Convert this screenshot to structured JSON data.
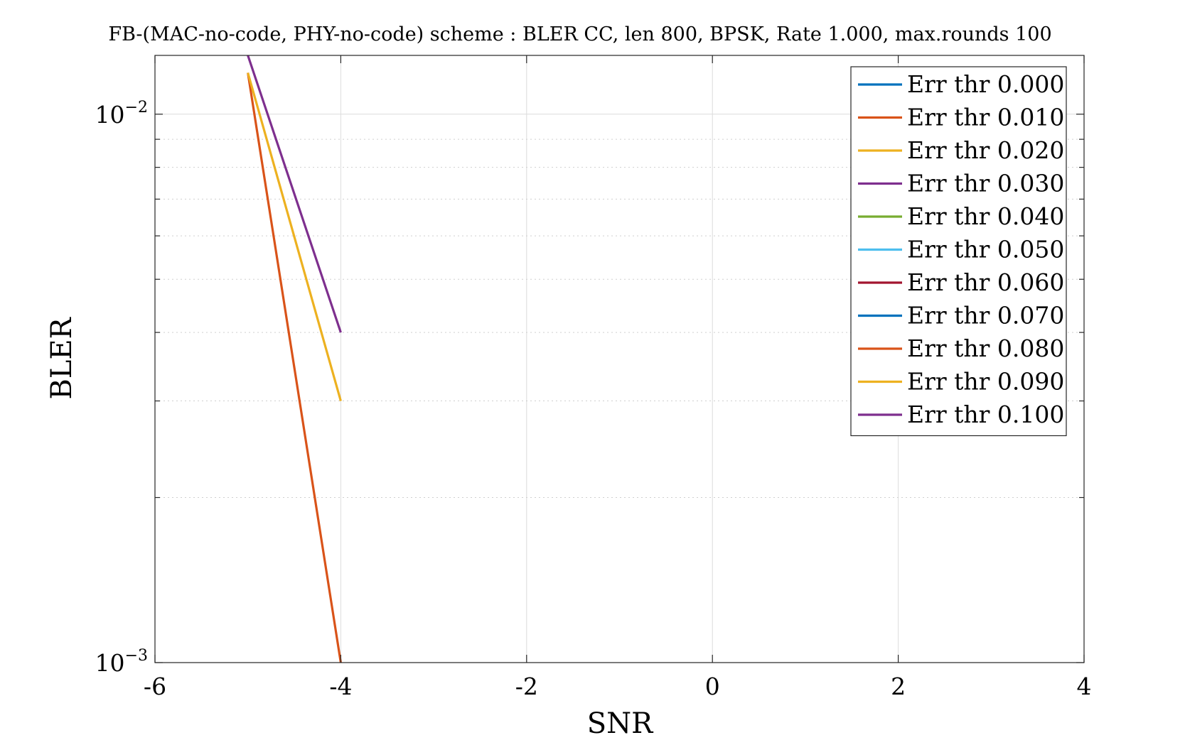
{
  "chart_data": {
    "type": "line",
    "title": "FB-(MAC-no-code, PHY-no-code) scheme : BLER CC, len 800, BPSK, Rate 1.000, max.rounds 100",
    "xlabel": "SNR",
    "ylabel": "BLER",
    "xlim": [
      -6,
      4
    ],
    "ylim": [
      0.001,
      0.0128
    ],
    "yscale": "log",
    "grid": true,
    "legend_position": "top-right",
    "x_ticks": [
      {
        "value": -6,
        "label": "-6"
      },
      {
        "value": -4,
        "label": "-4"
      },
      {
        "value": -2,
        "label": "-2"
      },
      {
        "value": 0,
        "label": "0"
      },
      {
        "value": 2,
        "label": "2"
      },
      {
        "value": 4,
        "label": "4"
      }
    ],
    "y_ticks": [
      {
        "value": 0.001,
        "base": "10",
        "exp": "−3"
      },
      {
        "value": 0.01,
        "base": "10",
        "exp": "−2"
      }
    ],
    "y_minor_ticks": [
      0.002,
      0.003,
      0.004,
      0.005,
      0.006,
      0.007,
      0.008,
      0.009
    ],
    "series": [
      {
        "name": "Err thr 0.000",
        "color": "#0072BD",
        "x": [],
        "y": []
      },
      {
        "name": "Err thr 0.010",
        "color": "#D95319",
        "x": [
          -5,
          -4
        ],
        "y": [
          0.0119,
          0.001
        ]
      },
      {
        "name": "Err thr 0.020",
        "color": "#EDB120",
        "x": [
          -5,
          -4
        ],
        "y": [
          0.0119,
          0.003
        ]
      },
      {
        "name": "Err thr 0.030",
        "color": "#7E2F8E",
        "x": [
          -5,
          -4
        ],
        "y": [
          0.0128,
          0.004
        ]
      },
      {
        "name": "Err thr 0.040",
        "color": "#77AC30",
        "x": [],
        "y": []
      },
      {
        "name": "Err thr 0.050",
        "color": "#4DBEEE",
        "x": [],
        "y": []
      },
      {
        "name": "Err thr 0.060",
        "color": "#A2142F",
        "x": [],
        "y": []
      },
      {
        "name": "Err thr 0.070",
        "color": "#0072BD",
        "x": [],
        "y": []
      },
      {
        "name": "Err thr 0.080",
        "color": "#D95319",
        "x": [],
        "y": []
      },
      {
        "name": "Err thr 0.090",
        "color": "#EDB120",
        "x": [],
        "y": []
      },
      {
        "name": "Err thr 0.100",
        "color": "#7E2F8E",
        "x": [],
        "y": []
      }
    ]
  }
}
